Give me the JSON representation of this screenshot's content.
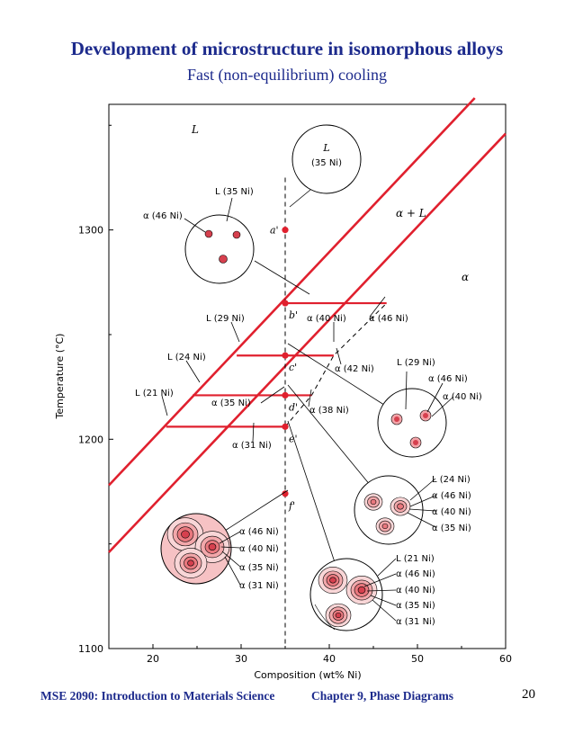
{
  "page": {
    "title": "Development of microstructure in isomorphous alloys",
    "subtitle": "Fast (non-equilibrium) cooling",
    "footer_course": "MSE 2090: Introduction to Materials Science",
    "footer_chapter": "Chapter 9, Phase Diagrams",
    "footer_page": "20"
  },
  "chart_data": {
    "type": "line",
    "xlabel": "Composition (wt% Ni)",
    "ylabel": "Temperature (°C)",
    "xlim": [
      15,
      60
    ],
    "ylim": [
      1100,
      1360
    ],
    "xticks": [
      20,
      30,
      40,
      50,
      60
    ],
    "yticks": [
      1100,
      1200,
      1300
    ],
    "grid": false,
    "colors": {
      "phase_line": "#e0202e",
      "point": "#e0202e",
      "frame": "#000000"
    },
    "series": [
      {
        "x": [
          15,
          56.5
        ],
        "y": [
          1178,
          1363
        ]
      },
      {
        "x": [
          15,
          60
        ],
        "y": [
          1146,
          1346
        ]
      }
    ],
    "composition_line": {
      "x": 35,
      "y_range": [
        1100,
        1325
      ],
      "style": "dashed"
    },
    "points": [
      {
        "label": "a'",
        "x": 35,
        "y": 1300
      },
      {
        "label": "b'",
        "x": 35,
        "y": 1265
      },
      {
        "label": "c'",
        "x": 35,
        "y": 1240
      },
      {
        "label": "d'",
        "x": 35,
        "y": 1221
      },
      {
        "label": "e'",
        "x": 35,
        "y": 1206
      },
      {
        "label": "f'",
        "x": 35,
        "y": 1174
      }
    ],
    "tie_lines": [
      {
        "y": 1265,
        "x": [
          35,
          46.5
        ]
      },
      {
        "y": 1240,
        "x": [
          29.5,
          40.5
        ]
      },
      {
        "y": 1221,
        "x": [
          24.5,
          38
        ]
      },
      {
        "y": 1206,
        "x": [
          21.5,
          35
        ]
      }
    ],
    "nonequilibrium_solidus": {
      "x": [
        35,
        38,
        40.5,
        46.5
      ],
      "y": [
        1206,
        1221,
        1240,
        1265
      ],
      "style": "dashed"
    },
    "region_labels": {
      "liquid": "L",
      "two_phase": "α + L",
      "solid": "α"
    },
    "annotations": {
      "L_35_circle_L": "L",
      "L_35_circle_comp": "(35 Ni)",
      "L_35": "L (35 Ni)",
      "a46": "α (46 Ni)",
      "L_29": "L (29 Ni)",
      "a40": "α (40 Ni)",
      "a46_b": "α (46 Ni)",
      "L_24": "L (24 Ni)",
      "a42": "α (42 Ni)",
      "L_21": "L (21 Ni)",
      "a35": "α (35 Ni)",
      "a38": "α (38 Ni)",
      "a31": "α (31 Ni)",
      "c_L29": "L (29 Ni)",
      "c_a46": "α (46 Ni)",
      "c_a40": "α (40 Ni)",
      "d_L24": "L (24 Ni)",
      "d_a46": "α (46 Ni)",
      "d_a40": "α (40 Ni)",
      "d_a35": "α (35 Ni)",
      "f_a46": "α (46 Ni)",
      "f_a40": "α (40 Ni)",
      "f_a35": "α (35 Ni)",
      "f_a31": "α (31 Ni)",
      "e_L21": "L (21 Ni)",
      "e_a46": "α (46 Ni)",
      "e_a40": "α (40 Ni)",
      "e_a35": "α (35 Ni)",
      "e_a31": "α (31 Ni)"
    }
  }
}
